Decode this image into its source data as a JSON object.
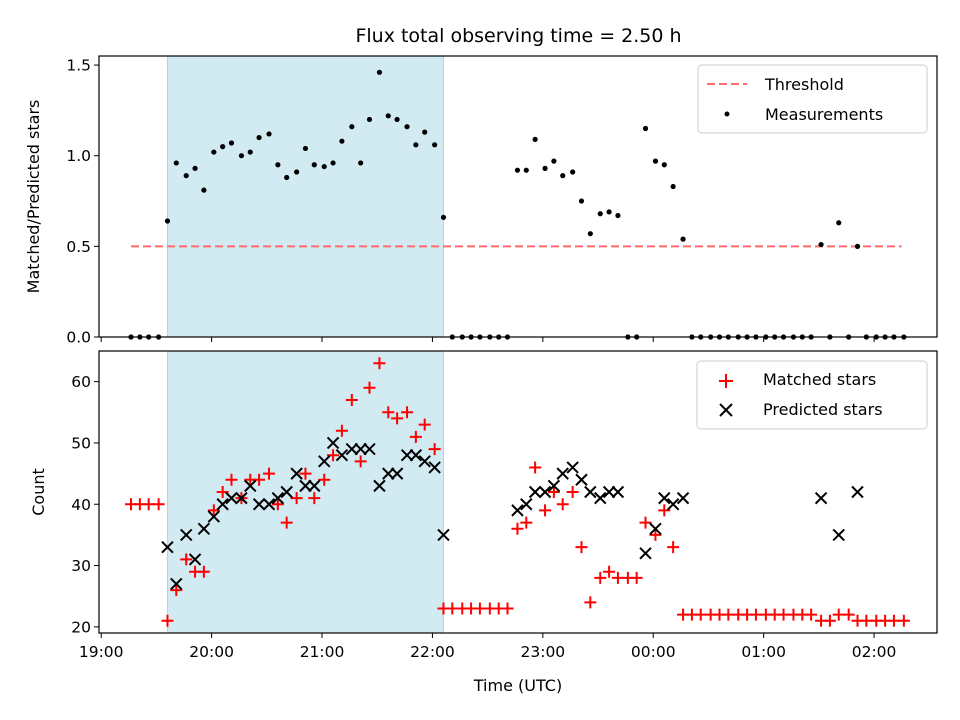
{
  "figure": {
    "title": "Flux total observing time = 2.50 h"
  },
  "chart_data": [
    {
      "type": "scatter",
      "ylabel": "Matched/Predicted stars",
      "ylim": [
        0,
        1.55
      ],
      "xlim": [
        18.98,
        26.57
      ],
      "yticks": [
        0.0,
        0.5,
        1.0,
        1.5
      ],
      "ytick_labels": [
        "0.0",
        "0.5",
        "1.0",
        "1.5"
      ],
      "legend": "top-right",
      "shaded_region": {
        "x": [
          19.6,
          22.1
        ],
        "color": "#add8e6"
      },
      "threshold": {
        "name": "Threshold",
        "y": 0.5,
        "x": [
          19.27,
          26.25
        ],
        "color": "#ff6b6b",
        "style": "dashed"
      },
      "series": [
        {
          "name": "Measurements",
          "marker": "dot",
          "color": "#000000",
          "points": [
            [
              19.27,
              0
            ],
            [
              19.35,
              0
            ],
            [
              19.43,
              0
            ],
            [
              19.52,
              0
            ],
            [
              19.6,
              0.64
            ],
            [
              19.68,
              0.96
            ],
            [
              19.77,
              0.89
            ],
            [
              19.85,
              0.93
            ],
            [
              19.93,
              0.81
            ],
            [
              20.02,
              1.02
            ],
            [
              20.1,
              1.05
            ],
            [
              20.18,
              1.07
            ],
            [
              20.27,
              1.0
            ],
            [
              20.35,
              1.02
            ],
            [
              20.43,
              1.1
            ],
            [
              20.52,
              1.12
            ],
            [
              20.6,
              0.95
            ],
            [
              20.68,
              0.88
            ],
            [
              20.77,
              0.91
            ],
            [
              20.85,
              1.04
            ],
            [
              20.93,
              0.95
            ],
            [
              21.02,
              0.94
            ],
            [
              21.1,
              0.96
            ],
            [
              21.18,
              1.08
            ],
            [
              21.27,
              1.16
            ],
            [
              21.35,
              0.96
            ],
            [
              21.43,
              1.2
            ],
            [
              21.52,
              1.46
            ],
            [
              21.6,
              1.22
            ],
            [
              21.68,
              1.2
            ],
            [
              21.77,
              1.16
            ],
            [
              21.85,
              1.06
            ],
            [
              21.93,
              1.13
            ],
            [
              22.02,
              1.06
            ],
            [
              22.1,
              0.66
            ],
            [
              22.18,
              0
            ],
            [
              22.27,
              0
            ],
            [
              22.35,
              0
            ],
            [
              22.43,
              0
            ],
            [
              22.52,
              0
            ],
            [
              22.6,
              0
            ],
            [
              22.68,
              0
            ],
            [
              22.77,
              0.92
            ],
            [
              22.85,
              0.92
            ],
            [
              22.93,
              1.09
            ],
            [
              23.02,
              0.93
            ],
            [
              23.1,
              0.97
            ],
            [
              23.18,
              0.89
            ],
            [
              23.27,
              0.91
            ],
            [
              23.35,
              0.75
            ],
            [
              23.43,
              0.57
            ],
            [
              23.52,
              0.68
            ],
            [
              23.6,
              0.69
            ],
            [
              23.68,
              0.67
            ],
            [
              23.77,
              0
            ],
            [
              23.85,
              0
            ],
            [
              23.93,
              1.15
            ],
            [
              24.02,
              0.97
            ],
            [
              24.1,
              0.95
            ],
            [
              24.18,
              0.83
            ],
            [
              24.27,
              0.54
            ],
            [
              24.35,
              0
            ],
            [
              24.43,
              0
            ],
            [
              24.52,
              0
            ],
            [
              24.6,
              0
            ],
            [
              24.68,
              0
            ],
            [
              24.77,
              0
            ],
            [
              24.85,
              0
            ],
            [
              24.93,
              0
            ],
            [
              25.02,
              0
            ],
            [
              25.1,
              0
            ],
            [
              25.18,
              0
            ],
            [
              25.27,
              0
            ],
            [
              25.35,
              0
            ],
            [
              25.43,
              0
            ],
            [
              25.52,
              0.51
            ],
            [
              25.6,
              0
            ],
            [
              25.68,
              0.63
            ],
            [
              25.77,
              0
            ],
            [
              25.85,
              0.5
            ],
            [
              25.93,
              0
            ],
            [
              26.02,
              0
            ],
            [
              26.1,
              0
            ],
            [
              26.18,
              0
            ],
            [
              26.27,
              0
            ]
          ]
        }
      ]
    },
    {
      "type": "scatter",
      "xlabel": "Time (UTC)",
      "ylabel": "Count",
      "ylim": [
        19,
        65
      ],
      "xlim": [
        18.98,
        26.57
      ],
      "yticks": [
        20,
        30,
        40,
        50,
        60
      ],
      "ytick_labels": [
        "20",
        "30",
        "40",
        "50",
        "60"
      ],
      "xticks": [
        19,
        20,
        21,
        22,
        23,
        24,
        25,
        26
      ],
      "xtick_labels": [
        "19:00",
        "20:00",
        "21:00",
        "22:00",
        "23:00",
        "00:00",
        "01:00",
        "02:00"
      ],
      "legend": "top-right",
      "shaded_region": {
        "x": [
          19.6,
          22.1
        ],
        "color": "#add8e6"
      },
      "series": [
        {
          "name": "Matched stars",
          "marker": "plus",
          "color": "#ff0000",
          "points": [
            [
              19.27,
              40
            ],
            [
              19.35,
              40
            ],
            [
              19.43,
              40
            ],
            [
              19.52,
              40
            ],
            [
              19.6,
              21
            ],
            [
              19.68,
              26
            ],
            [
              19.77,
              31
            ],
            [
              19.85,
              29
            ],
            [
              19.93,
              29
            ],
            [
              20.02,
              39
            ],
            [
              20.1,
              42
            ],
            [
              20.18,
              44
            ],
            [
              20.27,
              41
            ],
            [
              20.35,
              44
            ],
            [
              20.43,
              44
            ],
            [
              20.52,
              45
            ],
            [
              20.6,
              40
            ],
            [
              20.68,
              37
            ],
            [
              20.77,
              41
            ],
            [
              20.85,
              45
            ],
            [
              20.93,
              41
            ],
            [
              21.02,
              44
            ],
            [
              21.1,
              48
            ],
            [
              21.18,
              52
            ],
            [
              21.27,
              57
            ],
            [
              21.35,
              47
            ],
            [
              21.43,
              59
            ],
            [
              21.52,
              63
            ],
            [
              21.6,
              55
            ],
            [
              21.68,
              54
            ],
            [
              21.77,
              55
            ],
            [
              21.85,
              51
            ],
            [
              21.93,
              53
            ],
            [
              22.02,
              49
            ],
            [
              22.1,
              23
            ],
            [
              22.18,
              23
            ],
            [
              22.27,
              23
            ],
            [
              22.35,
              23
            ],
            [
              22.43,
              23
            ],
            [
              22.52,
              23
            ],
            [
              22.6,
              23
            ],
            [
              22.68,
              23
            ],
            [
              22.77,
              36
            ],
            [
              22.85,
              37
            ],
            [
              22.93,
              46
            ],
            [
              23.02,
              39
            ],
            [
              23.1,
              42
            ],
            [
              23.18,
              40
            ],
            [
              23.27,
              42
            ],
            [
              23.35,
              33
            ],
            [
              23.43,
              24
            ],
            [
              23.52,
              28
            ],
            [
              23.6,
              29
            ],
            [
              23.68,
              28
            ],
            [
              23.77,
              28
            ],
            [
              23.85,
              28
            ],
            [
              23.93,
              37
            ],
            [
              24.02,
              35
            ],
            [
              24.1,
              39
            ],
            [
              24.18,
              33
            ],
            [
              24.27,
              22
            ],
            [
              24.35,
              22
            ],
            [
              24.43,
              22
            ],
            [
              24.52,
              22
            ],
            [
              24.6,
              22
            ],
            [
              24.68,
              22
            ],
            [
              24.77,
              22
            ],
            [
              24.85,
              22
            ],
            [
              24.93,
              22
            ],
            [
              25.02,
              22
            ],
            [
              25.1,
              22
            ],
            [
              25.18,
              22
            ],
            [
              25.27,
              22
            ],
            [
              25.35,
              22
            ],
            [
              25.43,
              22
            ],
            [
              25.52,
              21
            ],
            [
              25.6,
              21
            ],
            [
              25.68,
              22
            ],
            [
              25.77,
              22
            ],
            [
              25.85,
              21
            ],
            [
              25.93,
              21
            ],
            [
              26.02,
              21
            ],
            [
              26.1,
              21
            ],
            [
              26.18,
              21
            ],
            [
              26.27,
              21
            ]
          ]
        },
        {
          "name": "Predicted stars",
          "marker": "x",
          "color": "#000000",
          "points": [
            [
              19.6,
              33
            ],
            [
              19.68,
              27
            ],
            [
              19.77,
              35
            ],
            [
              19.85,
              31
            ],
            [
              19.93,
              36
            ],
            [
              20.02,
              38
            ],
            [
              20.1,
              40
            ],
            [
              20.18,
              41
            ],
            [
              20.27,
              41
            ],
            [
              20.35,
              43
            ],
            [
              20.43,
              40
            ],
            [
              20.52,
              40
            ],
            [
              20.6,
              41
            ],
            [
              20.68,
              42
            ],
            [
              20.77,
              45
            ],
            [
              20.85,
              43
            ],
            [
              20.93,
              43
            ],
            [
              21.02,
              47
            ],
            [
              21.1,
              50
            ],
            [
              21.18,
              48
            ],
            [
              21.27,
              49
            ],
            [
              21.35,
              49
            ],
            [
              21.43,
              49
            ],
            [
              21.52,
              43
            ],
            [
              21.6,
              45
            ],
            [
              21.68,
              45
            ],
            [
              21.77,
              48
            ],
            [
              21.85,
              48
            ],
            [
              21.93,
              47
            ],
            [
              22.02,
              46
            ],
            [
              22.1,
              35
            ],
            [
              22.77,
              39
            ],
            [
              22.85,
              40
            ],
            [
              22.93,
              42
            ],
            [
              23.02,
              42
            ],
            [
              23.1,
              43
            ],
            [
              23.18,
              45
            ],
            [
              23.27,
              46
            ],
            [
              23.35,
              44
            ],
            [
              23.43,
              42
            ],
            [
              23.52,
              41
            ],
            [
              23.6,
              42
            ],
            [
              23.68,
              42
            ],
            [
              23.93,
              32
            ],
            [
              24.02,
              36
            ],
            [
              24.1,
              41
            ],
            [
              24.18,
              40
            ],
            [
              24.27,
              41
            ],
            [
              25.52,
              41
            ],
            [
              25.68,
              35
            ],
            [
              25.85,
              42
            ]
          ]
        }
      ]
    }
  ]
}
